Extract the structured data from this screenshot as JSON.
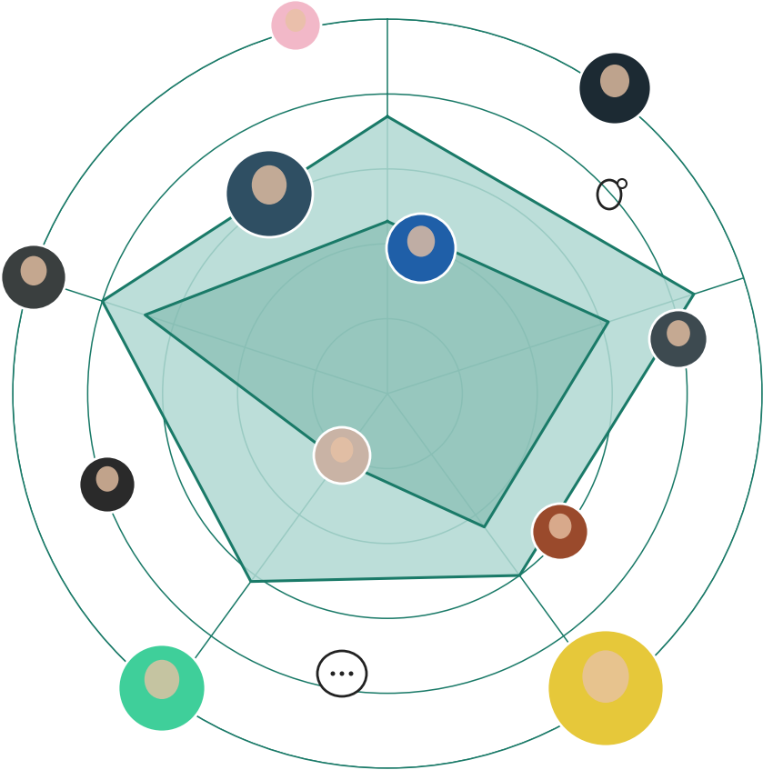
{
  "chart_data": {
    "type": "radar",
    "categories": [
      null,
      null,
      null,
      null,
      null
    ],
    "series": [
      {
        "values": [
          3.7,
          4.3,
          3.0,
          3.1,
          4.0
        ]
      },
      {
        "values": [
          2.3,
          3.1,
          2.2,
          1.1,
          3.4
        ]
      }
    ],
    "color": "#1a7a68",
    "ylim": [
      0,
      5
    ],
    "yticks": [
      1,
      2,
      3,
      4,
      5
    ],
    "grid": true,
    "tick_labels": false
  }
}
